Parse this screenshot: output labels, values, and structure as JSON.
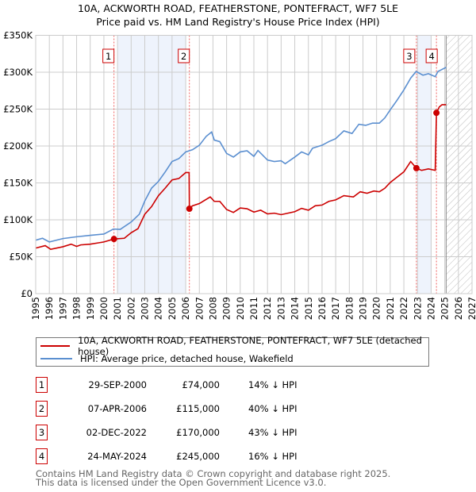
{
  "chart_data": {
    "type": "line",
    "title": "10A, ACKWORTH ROAD, FEATHERSTONE, PONTEFRACT, WF7 5LE",
    "subtitle": "Price paid vs. HM Land Registry's House Price Index (HPI)",
    "xlim": [
      1995,
      2027
    ],
    "ylim": [
      0,
      350000
    ],
    "yticks": [
      0,
      50000,
      100000,
      150000,
      200000,
      250000,
      300000,
      350000
    ],
    "ytick_labels": [
      "£0",
      "£50K",
      "£100K",
      "£150K",
      "£200K",
      "£250K",
      "£300K",
      "£350K"
    ],
    "xticks": [
      "1995",
      "1996",
      "1997",
      "1998",
      "1999",
      "2000",
      "2001",
      "2002",
      "2003",
      "2004",
      "2005",
      "2006",
      "2007",
      "2008",
      "2009",
      "2010",
      "2011",
      "2012",
      "2013",
      "2014",
      "2015",
      "2016",
      "2017",
      "2018",
      "2019",
      "2020",
      "2021",
      "2022",
      "2023",
      "2024",
      "2025",
      "2026",
      "2027"
    ],
    "grid": true,
    "shaded_ranges": [
      [
        2001,
        2006
      ],
      [
        2023,
        2024
      ]
    ],
    "forecast_from": 2025.1,
    "series": [
      {
        "name": "10A, ACKWORTH ROAD, FEATHERSTONE, PONTEFRACT, WF7 5LE (detached house)",
        "color": "#cc0000",
        "x": [
          1995,
          1995.7,
          1996.1,
          1997,
          1997.6,
          1998,
          1998.3,
          1999,
          2000,
          2000.74,
          2001.5,
          2002,
          2002.5,
          2003,
          2003.5,
          2004,
          2004.5,
          2005,
          2005.5,
          2006,
          2006.25,
          2006.27,
          2006.5,
          2007,
          2007.8,
          2008.1,
          2008.5,
          2009,
          2009.5,
          2010,
          2010.5,
          2011,
          2011.5,
          2012,
          2012.5,
          2013,
          2013.5,
          2014,
          2014.5,
          2015,
          2015.5,
          2016,
          2016.5,
          2017,
          2017.6,
          2018.3,
          2018.8,
          2019.3,
          2019.8,
          2020.2,
          2020.6,
          2021,
          2021.5,
          2022,
          2022.5,
          2022.92,
          2023.3,
          2023.8,
          2024.3,
          2024.39,
          2024.6,
          2024.8,
          2025.1
        ],
        "y": [
          61700,
          65000,
          60000,
          63500,
          67000,
          64000,
          66000,
          67000,
          70000,
          74000,
          75000,
          82500,
          88000,
          107600,
          118000,
          132700,
          143000,
          154000,
          156000,
          164000,
          164000,
          115000,
          119000,
          122000,
          131000,
          125000,
          125000,
          114000,
          110000,
          116000,
          115000,
          110500,
          113000,
          108000,
          109000,
          107000,
          109000,
          111000,
          115500,
          113000,
          119000,
          120000,
          125000,
          127000,
          132700,
          131000,
          138000,
          136000,
          139000,
          138000,
          142700,
          150600,
          157800,
          165000,
          179000,
          170000,
          167000,
          169000,
          167000,
          245000,
          253000,
          256000,
          256000
        ]
      },
      {
        "name": "HPI: Average price, detached house, Wakefield",
        "color": "#5b8fd0",
        "x": [
          1995,
          1995.5,
          1996,
          1997,
          1998,
          1999,
          2000,
          2000.7,
          2001.2,
          2002,
          2002.6,
          2003,
          2003.5,
          2004,
          2004.5,
          2005,
          2005.5,
          2006,
          2006.5,
          2007,
          2007.5,
          2007.9,
          2008.1,
          2008.5,
          2009,
          2009.5,
          2010,
          2010.5,
          2011,
          2011.3,
          2012,
          2012.5,
          2013,
          2013.3,
          2014,
          2014.5,
          2015,
          2015.3,
          2016,
          2016.5,
          2017,
          2017.6,
          2018.2,
          2018.7,
          2019.2,
          2019.7,
          2020.2,
          2020.6,
          2021,
          2021.5,
          2022,
          2022.5,
          2022.9,
          2023.4,
          2023.8,
          2024.3,
          2024.5,
          2025.1
        ],
        "y": [
          72400,
          75000,
          70000,
          74600,
          77000,
          79000,
          80700,
          87500,
          87000,
          97000,
          107600,
          125500,
          143000,
          152000,
          165000,
          179000,
          183000,
          192000,
          195000,
          201000,
          213000,
          219000,
          208000,
          206000,
          190000,
          185000,
          192000,
          193600,
          186000,
          194000,
          181000,
          179000,
          180000,
          176000,
          185000,
          192000,
          188000,
          197000,
          201000,
          206000,
          210000,
          220500,
          217000,
          229500,
          228000,
          231000,
          231000,
          238000,
          249000,
          262000,
          276000,
          292000,
          301000,
          296000,
          298000,
          294000,
          301000,
          306600
        ]
      }
    ],
    "sales": [
      {
        "label": "1",
        "x": 2000.74,
        "y": 74000
      },
      {
        "label": "2",
        "x": 2006.27,
        "y": 115000
      },
      {
        "label": "3",
        "x": 2022.92,
        "y": 170000
      },
      {
        "label": "4",
        "x": 2024.39,
        "y": 245000
      }
    ]
  },
  "transactions": [
    {
      "num": "1",
      "date": "29-SEP-2000",
      "price": "£74,000",
      "hpi": "14% ↓ HPI"
    },
    {
      "num": "2",
      "date": "07-APR-2006",
      "price": "£115,000",
      "hpi": "40% ↓ HPI"
    },
    {
      "num": "3",
      "date": "02-DEC-2022",
      "price": "£170,000",
      "hpi": "43% ↓ HPI"
    },
    {
      "num": "4",
      "date": "24-MAY-2024",
      "price": "£245,000",
      "hpi": "16% ↓ HPI"
    }
  ],
  "footer": {
    "line1": "Contains HM Land Registry data © Crown copyright and database right 2025.",
    "line2": "This data is licensed under the Open Government Licence v3.0."
  }
}
